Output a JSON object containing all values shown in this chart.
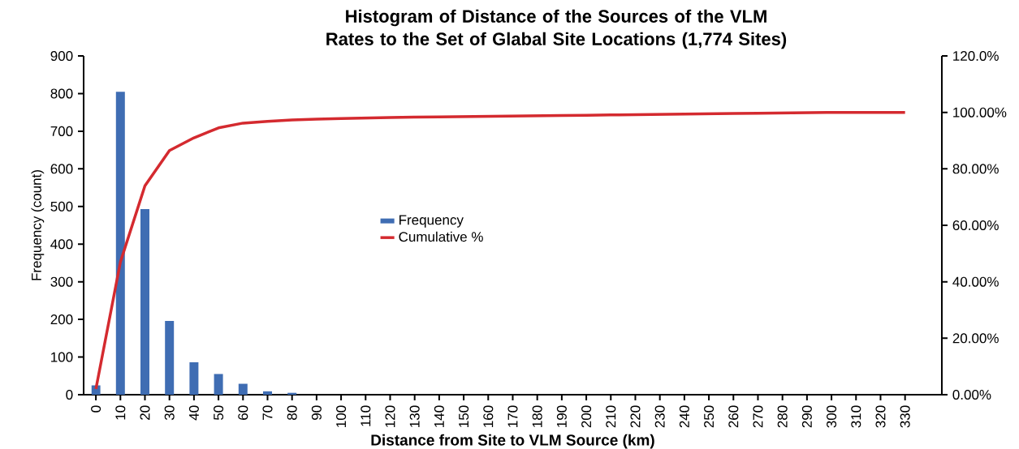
{
  "chart_data": {
    "type": "bar",
    "title": "Histogram of Distance of the Sources of the VLM Rates to the Set of Glabal Site Locations (1,774 Sites)",
    "xlabel": "Distance from Site to VLM Source (km)",
    "ylabel": "Frequency (count)",
    "categories": [
      "0",
      "10",
      "20",
      "30",
      "40",
      "50",
      "60",
      "70",
      "80",
      "90",
      "100",
      "110",
      "120",
      "130",
      "140",
      "150",
      "160",
      "170",
      "180",
      "190",
      "200",
      "210",
      "220",
      "230",
      "240",
      "250",
      "260",
      "270",
      "280",
      "290",
      "300",
      "310",
      "320",
      "330"
    ],
    "series": [
      {
        "name": "Frequency",
        "color": "#3f6db3",
        "values": [
          25,
          805,
          493,
          196,
          86,
          55,
          29,
          9,
          5,
          0,
          0,
          0,
          0,
          0,
          0,
          0,
          0,
          0,
          0,
          0,
          0,
          0,
          0,
          0,
          0,
          0,
          0,
          0,
          0,
          0,
          0,
          0,
          0,
          0
        ]
      },
      {
        "name": "Cumulative %",
        "type": "line",
        "axis": "y2",
        "color": "#d42a2f",
        "values": [
          2,
          47,
          74,
          86.5,
          91,
          94.5,
          96.2,
          96.8,
          97.3,
          97.6,
          97.8,
          98.0,
          98.2,
          98.3,
          98.4,
          98.5,
          98.6,
          98.7,
          98.8,
          98.9,
          99.0,
          99.1,
          99.2,
          99.3,
          99.4,
          99.5,
          99.6,
          99.7,
          99.8,
          99.9,
          100,
          100,
          100,
          100
        ]
      }
    ],
    "ylim": [
      0,
      900
    ],
    "yticks": [
      0,
      100,
      200,
      300,
      400,
      500,
      600,
      700,
      800,
      900
    ],
    "y2lim": [
      0,
      120
    ],
    "y2ticks": [
      {
        "value": 0,
        "label": "0.00%"
      },
      {
        "value": 20,
        "label": "20.00%"
      },
      {
        "value": 40,
        "label": "40.00%"
      },
      {
        "value": 60,
        "label": "60.00%"
      },
      {
        "value": 80,
        "label": "80.00%"
      },
      {
        "value": 100,
        "label": "100.00%"
      },
      {
        "value": 120,
        "label": "120.0%"
      }
    ],
    "legend": "center"
  }
}
